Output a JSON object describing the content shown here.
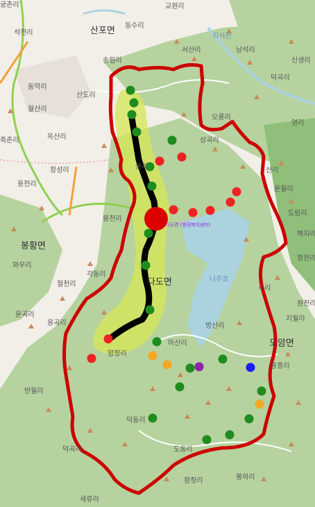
{
  "map": {
    "colors": {
      "land": "#f2efe9",
      "forest": "#b5d29f",
      "forest_dark": "#8fbf7a",
      "water": "#aad3df",
      "boundary": "#cc0000",
      "route": "#000000",
      "corridor": "#d6e65a",
      "highway": "#8fd14f",
      "road_orange": "#f0a040",
      "road_pink": "#e8a0a8",
      "peak": "#c98a5a",
      "marker_green": "#1e8c1e",
      "marker_red": "#ee2222",
      "marker_orange": "#f5a623",
      "marker_purple": "#8e24aa",
      "marker_blue": "#1a1aff",
      "center_marker": "#dd0000"
    },
    "labels": {
      "sanpo_myeon": "산포면",
      "bonghwang_myeon": "봉황면",
      "dado_myeon": "다도면",
      "doam_myeon": "도암면",
      "jiseokcheon": "지석천",
      "dahojae": "나주호",
      "village_1": "궁촌리",
      "village_2": "석전리",
      "village_3": "등수리",
      "village_4": "교원리",
      "village_5": "송림리",
      "village_6": "서산리",
      "village_7": "남석리",
      "village_8": "덕곡리",
      "village_9": "신생리",
      "village_10": "산도리",
      "village_11": "동막리",
      "village_12": "월산리",
      "village_13": "옥산리",
      "village_14": "죽촌리",
      "village_15": "장성리",
      "village_16": "용전리",
      "village_17": "상곡리",
      "village_18": "오룡리",
      "village_19": "봉천리",
      "village_20": "와우리",
      "village_21": "각동리",
      "village_22": "철천리",
      "village_23": "운곡리",
      "village_24": "용곡리",
      "village_25": "방산리",
      "village_26": "마산리",
      "village_27": "암정리",
      "village_28": "반월리",
      "village_29": "덕동리",
      "village_30": "도동리",
      "village_31": "왕정리",
      "village_32": "봉하리",
      "village_33": "덕곡리",
      "village_34": "세류리",
      "village_35": "운월리",
      "village_36": "도림리",
      "village_37": "벽지리",
      "village_38": "정천리",
      "village_39": "원천리",
      "village_40": "지월리",
      "village_41": "용흥리",
      "village_42": "수리",
      "village_43": "영리",
      "village_44": "산리",
      "village_45": "봉리",
      "center_label": "다도면 (행정복지센터)"
    },
    "marker_types": {
      "green": "marker_green",
      "red": "marker_red",
      "orange": "marker_orange",
      "purple": "marker_purple",
      "blue": "marker_blue"
    }
  }
}
